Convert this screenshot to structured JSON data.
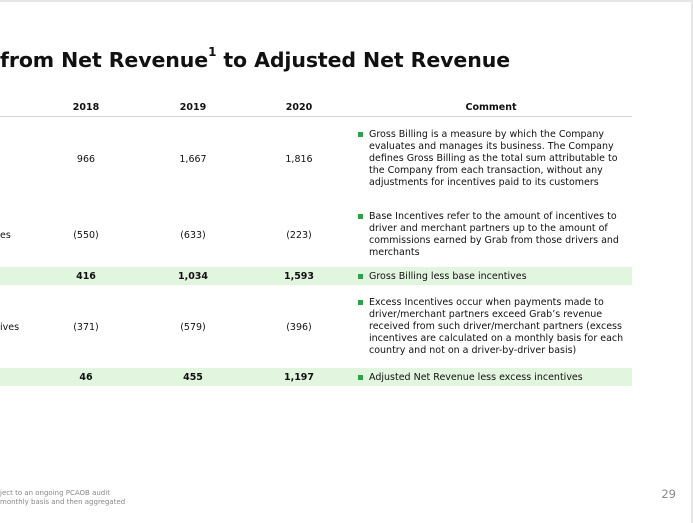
{
  "title": {
    "text": "from Net Revenue",
    "sup": "1",
    "rest": " to Adjusted Net Revenue"
  },
  "columns": {
    "y2018": "2018",
    "y2019": "2019",
    "y2020": "2020",
    "comment": "Comment"
  },
  "rows": [
    {
      "label": "",
      "v2018": "966",
      "v2019": "1,667",
      "v2020": "1,816",
      "comment": "Gross Billing is a measure by which the Company evaluates and manages its business. The Company defines Gross Billing as the total sum attributable to the Company from each transaction, without any adjustments for incentives paid to its customers"
    },
    {
      "label": "es",
      "v2018": "(550)",
      "v2019": "(633)",
      "v2020": "(223)",
      "comment": "Base Incentives refer to the amount of incentives to driver and merchant partners up to the amount of commissions earned by Grab from those drivers and merchants"
    },
    {
      "label": "",
      "v2018": "416",
      "v2019": "1,034",
      "v2020": "1,593",
      "comment": "Gross Billing less base incentives"
    },
    {
      "label": "ives",
      "v2018": "(371)",
      "v2019": "(579)",
      "v2020": "(396)",
      "comment": "Excess Incentives occur when payments made to driver/merchant partners exceed Grab’s revenue received from such driver/merchant partners (excess incentives are calculated on a monthly basis for each country and not on a driver-by-driver basis)"
    },
    {
      "label": "",
      "v2018": "46",
      "v2019": "455",
      "v2020": "1,197",
      "comment": "Adjusted Net Revenue less excess incentives"
    }
  ],
  "footnotes": {
    "line1": "ject to an ongoing PCAOB audit",
    "line2": "monthly basis and then aggregated"
  },
  "page_number": "29",
  "colors": {
    "highlight_band": "#e2f5df",
    "bullet": "#2ca24a"
  }
}
